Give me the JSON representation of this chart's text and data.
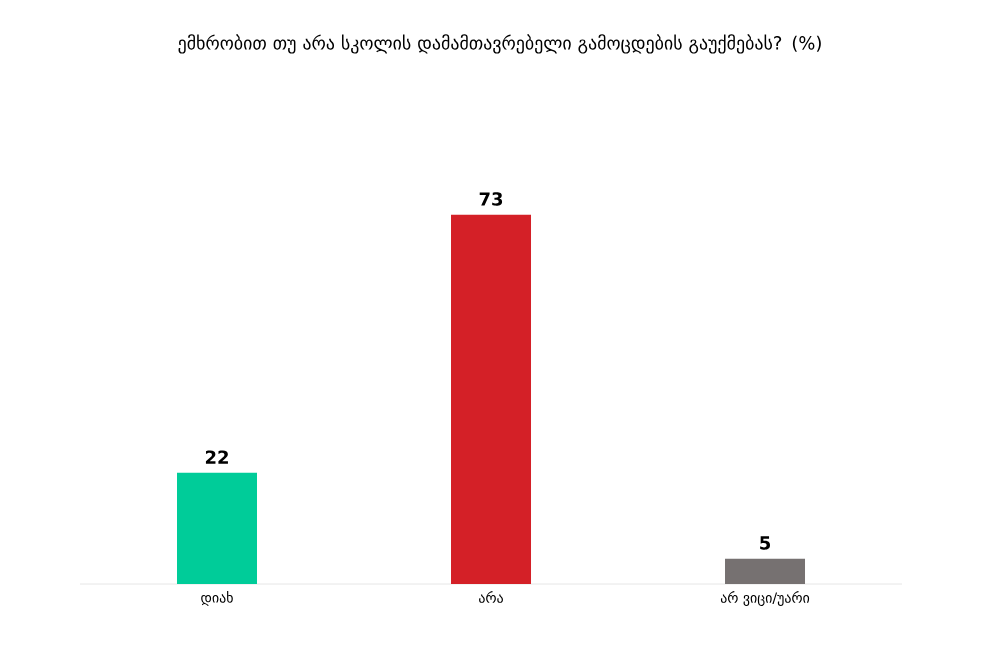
{
  "chart_data": {
    "type": "bar",
    "title": "ემხრობით თუ არა სკოლის დამამთავრებელი გამოცდების გაუქმებას? (%)",
    "categories": [
      "დიახ",
      "არა",
      "არ ვიცი/უარი"
    ],
    "values": [
      22,
      73,
      5
    ],
    "colors": [
      "#00cc99",
      "#d42027",
      "#767171"
    ],
    "data_labels": true
  }
}
